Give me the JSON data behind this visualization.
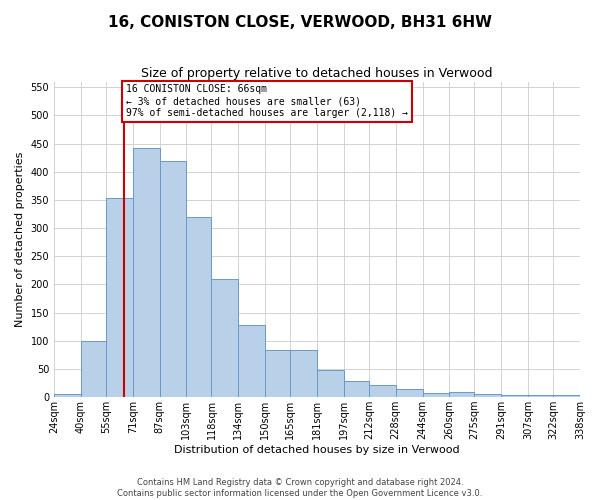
{
  "title": "16, CONISTON CLOSE, VERWOOD, BH31 6HW",
  "subtitle": "Size of property relative to detached houses in Verwood",
  "xlabel": "Distribution of detached houses by size in Verwood",
  "ylabel": "Number of detached properties",
  "bin_edges": [
    24,
    40,
    55,
    71,
    87,
    103,
    118,
    134,
    150,
    165,
    181,
    197,
    212,
    228,
    244,
    260,
    275,
    291,
    307,
    322,
    338
  ],
  "heights": [
    5,
    100,
    353,
    443,
    420,
    320,
    210,
    128,
    83,
    83,
    48,
    28,
    22,
    15,
    8,
    10,
    5,
    3,
    3,
    3
  ],
  "bar_color": "#b8d0e8",
  "bar_edge_color": "#6699cc",
  "property_size": 66,
  "redline_color": "#cc0000",
  "annotation_text": "16 CONISTON CLOSE: 66sqm\n← 3% of detached houses are smaller (63)\n97% of semi-detached houses are larger (2,118) →",
  "annotation_box_facecolor": "#ffffff",
  "annotation_box_edgecolor": "#cc0000",
  "ylim": [
    0,
    560
  ],
  "yticks": [
    0,
    50,
    100,
    150,
    200,
    250,
    300,
    350,
    400,
    450,
    500,
    550
  ],
  "grid_color": "#cccccc",
  "bg_color": "#ffffff",
  "title_fontsize": 11,
  "subtitle_fontsize": 9,
  "ylabel_fontsize": 8,
  "xlabel_fontsize": 8,
  "tick_fontsize": 7,
  "annot_fontsize": 7,
  "footer1": "Contains HM Land Registry data © Crown copyright and database right 2024.",
  "footer2": "Contains public sector information licensed under the Open Government Licence v3.0.",
  "footer_fontsize": 6
}
